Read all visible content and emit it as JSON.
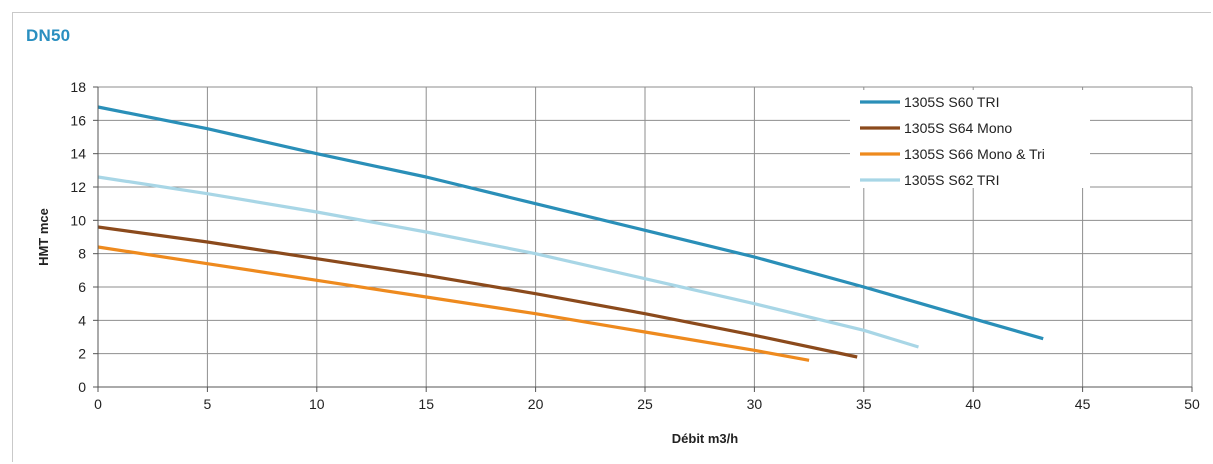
{
  "chart_title": "DN50",
  "chart_data": {
    "type": "line",
    "title": "DN50",
    "xlabel": "Débit m3/h",
    "ylabel": "HMT mce",
    "xlim": [
      0,
      50
    ],
    "ylim": [
      0,
      18
    ],
    "xticks": [
      "0",
      "5",
      "10",
      "15",
      "20",
      "25",
      "30",
      "35",
      "40",
      "45",
      "50"
    ],
    "yticks": [
      "0",
      "2",
      "4",
      "6",
      "8",
      "10",
      "12",
      "14",
      "16",
      "18"
    ],
    "grid": true,
    "legend_position": "top-right",
    "series": [
      {
        "name": "1305S S60 TRI",
        "color": "#2a8fb8",
        "x": [
          0,
          5,
          10,
          15,
          20,
          25,
          30,
          35,
          40,
          43.2
        ],
        "y": [
          16.8,
          15.5,
          14.0,
          12.6,
          11.0,
          9.4,
          7.8,
          6.0,
          4.1,
          2.9
        ]
      },
      {
        "name": "1305S S64 Mono",
        "color": "#8b4a1c",
        "x": [
          0,
          5,
          10,
          15,
          20,
          25,
          30,
          34.7
        ],
        "y": [
          9.6,
          8.7,
          7.7,
          6.7,
          5.6,
          4.4,
          3.1,
          1.8
        ]
      },
      {
        "name": "1305S S66 Mono & Tri",
        "color": "#ee8a1e",
        "x": [
          0,
          5,
          10,
          15,
          20,
          25,
          30,
          32.5
        ],
        "y": [
          8.4,
          7.4,
          6.4,
          5.4,
          4.4,
          3.3,
          2.2,
          1.6
        ]
      },
      {
        "name": "1305S S62 TRI",
        "color": "#a8d6e6",
        "x": [
          0,
          5,
          10,
          15,
          20,
          25,
          30,
          35,
          37.5
        ],
        "y": [
          12.6,
          11.6,
          10.5,
          9.3,
          8.0,
          6.5,
          5.0,
          3.4,
          2.4
        ]
      }
    ]
  }
}
